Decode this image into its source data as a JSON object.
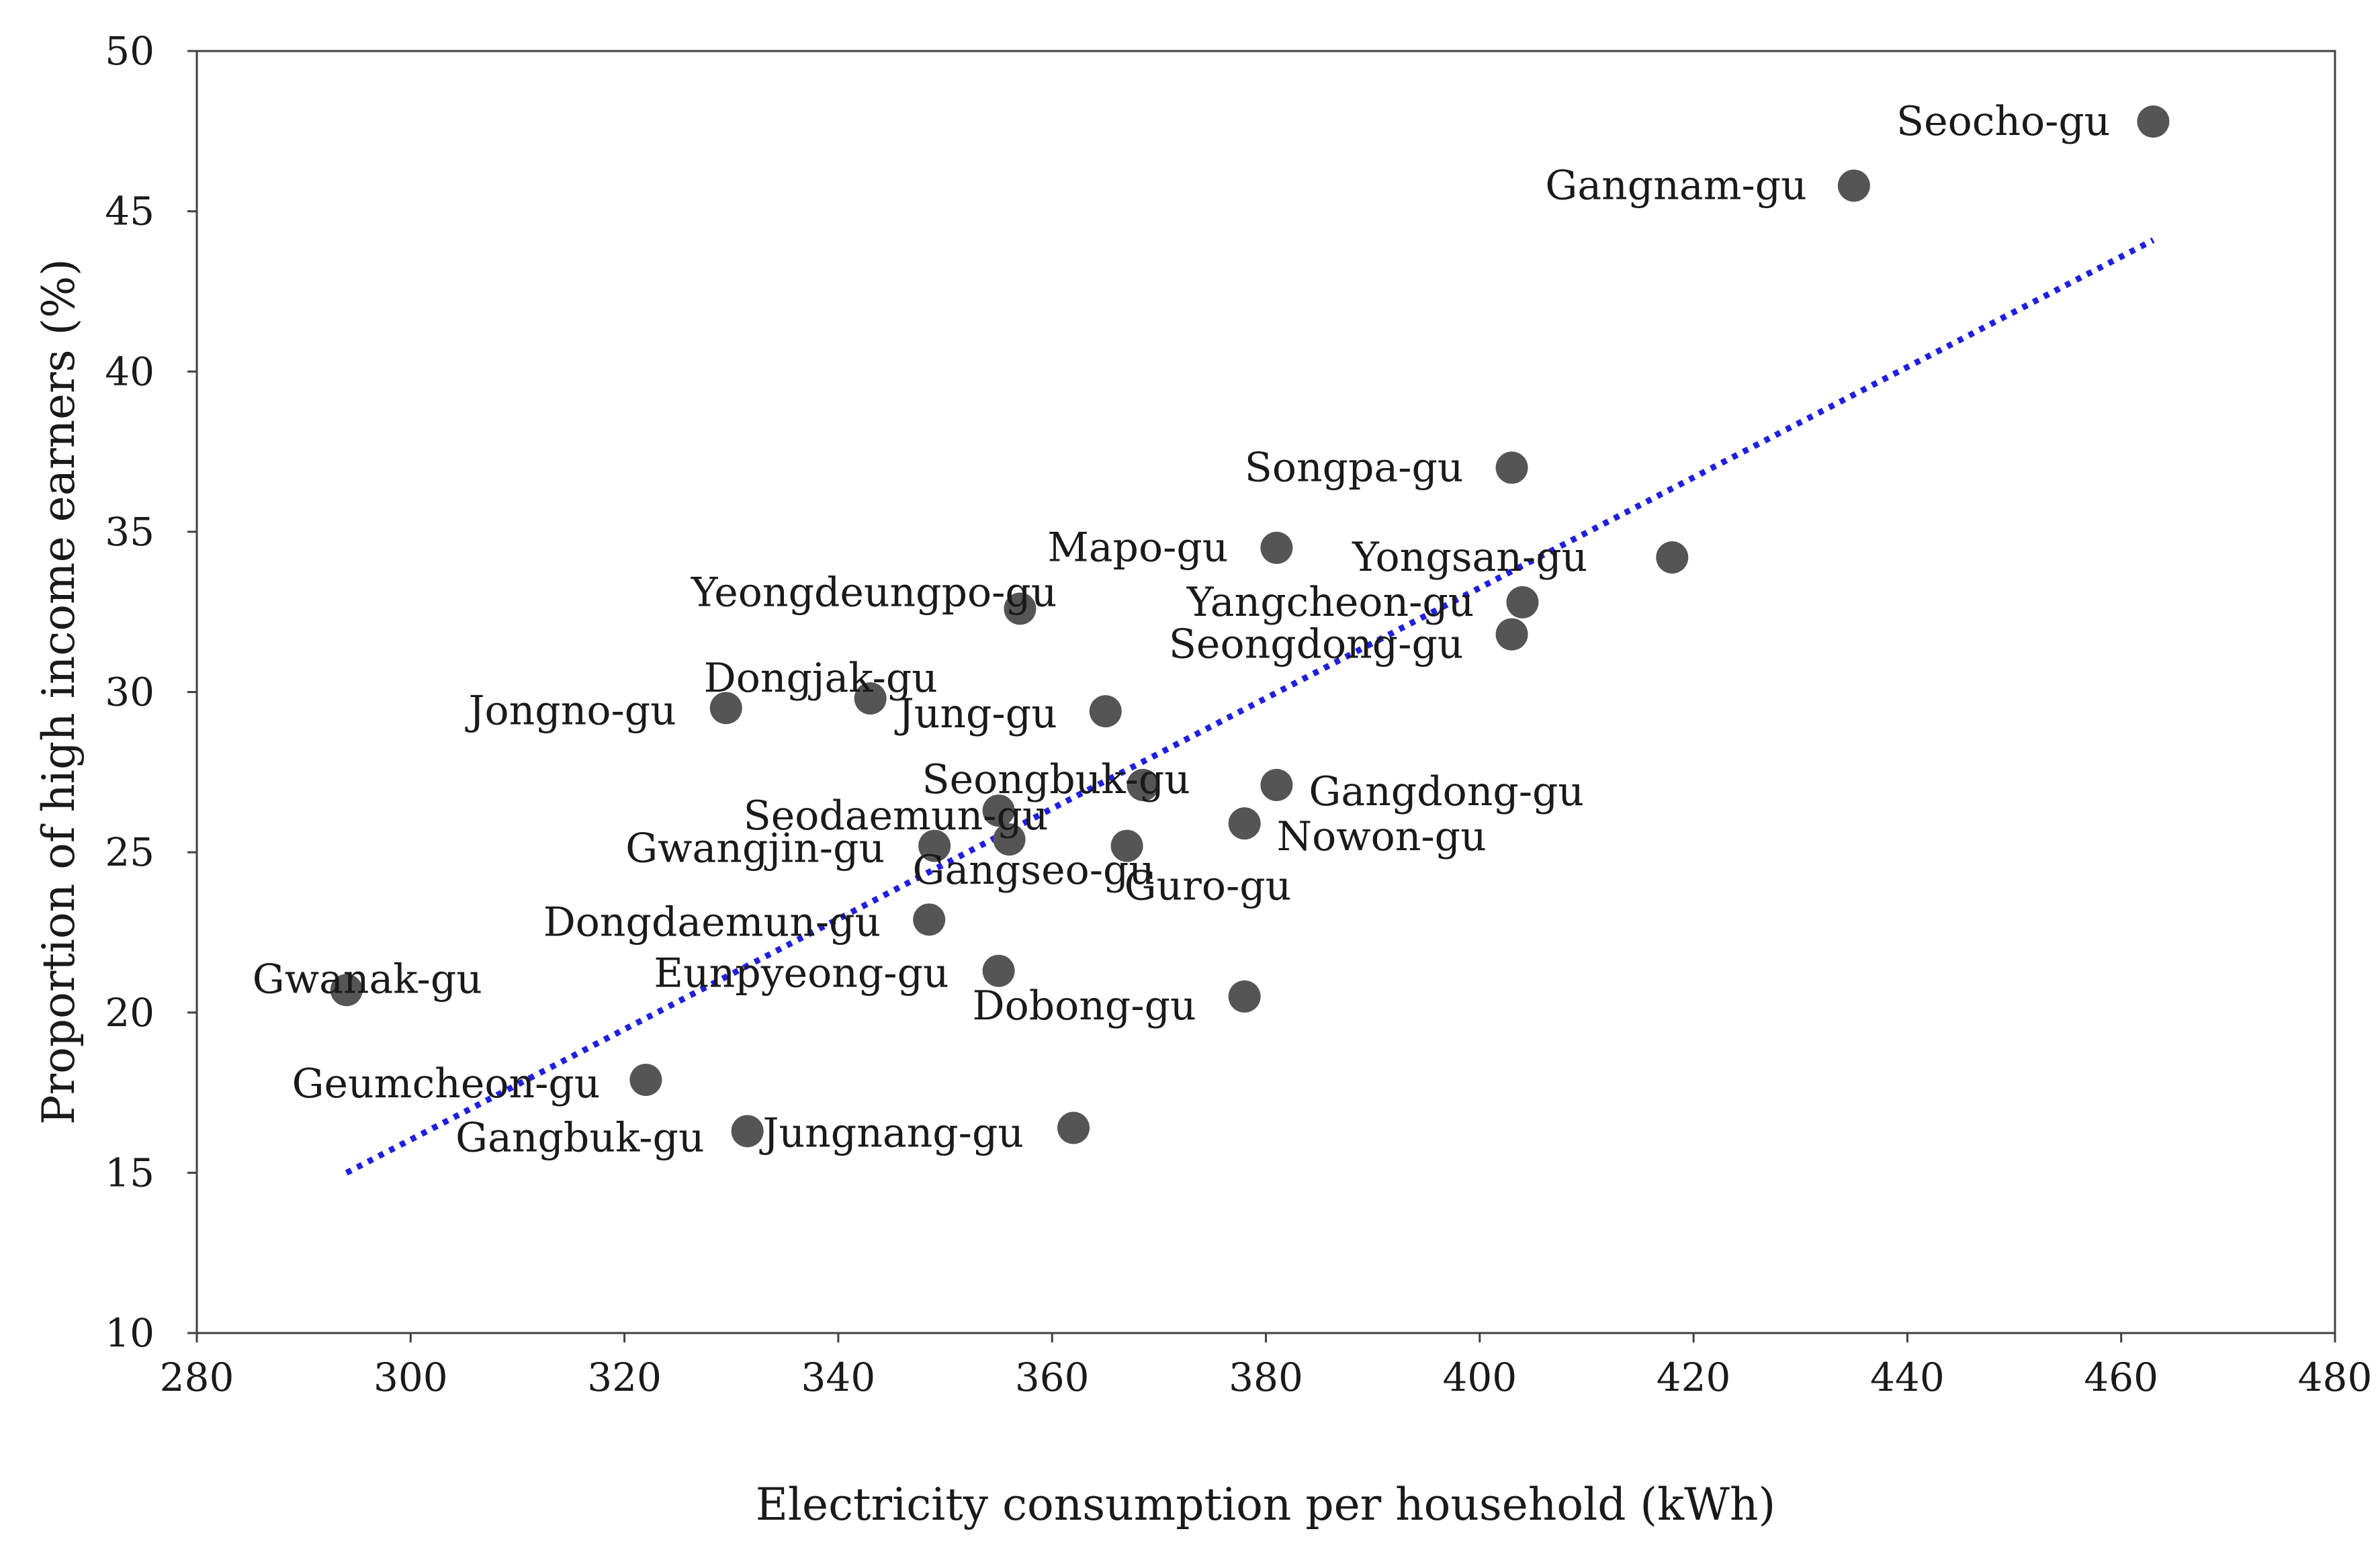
{
  "chart_data": {
    "type": "scatter",
    "title": "",
    "xlabel": "Electricity consumption per household (kWh)",
    "ylabel": "Proportion of high income earners (%)",
    "xlim": [
      280,
      480
    ],
    "ylim": [
      10,
      50
    ],
    "xticks": [
      280,
      300,
      320,
      340,
      360,
      380,
      400,
      420,
      440,
      460,
      480
    ],
    "yticks": [
      10,
      15,
      20,
      25,
      30,
      35,
      40,
      45,
      50
    ],
    "grid": false,
    "legend": "none",
    "colors": {
      "point": "#555555",
      "trend": "#1f1fe0",
      "axis": "#404040"
    },
    "trendline": {
      "style": "dotted",
      "x": [
        294,
        463
      ],
      "y": [
        15,
        44.1
      ]
    },
    "points": [
      {
        "name": "Seocho-gu",
        "x": 463,
        "y": 47.8
      },
      {
        "name": "Gangnam-gu",
        "x": 435,
        "y": 45.8
      },
      {
        "name": "Songpa-gu",
        "x": 403,
        "y": 37.0
      },
      {
        "name": "Mapo-gu",
        "x": 381,
        "y": 34.5
      },
      {
        "name": "Yongsan-gu",
        "x": 418,
        "y": 34.2
      },
      {
        "name": "Yangcheon-gu",
        "x": 404,
        "y": 32.8
      },
      {
        "name": "Seongdong-gu",
        "x": 403,
        "y": 31.8
      },
      {
        "name": "Yeongdeungpo-gu",
        "x": 357,
        "y": 32.6
      },
      {
        "name": "Dongjak-gu",
        "x": 343,
        "y": 29.8
      },
      {
        "name": "Jongno-gu",
        "x": 329.5,
        "y": 29.5
      },
      {
        "name": "Jung-gu",
        "x": 365,
        "y": 29.4
      },
      {
        "name": "Seongbuk-gu",
        "x": 368.5,
        "y": 27.1
      },
      {
        "name": "Gangdong-gu",
        "x": 381,
        "y": 27.1
      },
      {
        "name": "Seodaemun-gu",
        "x": 355,
        "y": 26.3
      },
      {
        "name": "Nowon-gu",
        "x": 378,
        "y": 25.9
      },
      {
        "name": "Gwangjin-gu",
        "x": 349,
        "y": 25.2
      },
      {
        "name": "Gangseo-gu",
        "x": 356,
        "y": 25.4
      },
      {
        "name": "Guro-gu",
        "x": 367,
        "y": 25.2
      },
      {
        "name": "Dongdaemun-gu",
        "x": 348.5,
        "y": 22.9
      },
      {
        "name": "Eunpyeong-gu",
        "x": 355,
        "y": 21.3
      },
      {
        "name": "Gwanak-gu",
        "x": 294,
        "y": 20.7
      },
      {
        "name": "Dobong-gu",
        "x": 378,
        "y": 20.5
      },
      {
        "name": "Geumcheon-gu",
        "x": 322,
        "y": 17.9
      },
      {
        "name": "Gangbuk-gu",
        "x": 331.5,
        "y": 16.3
      },
      {
        "name": "Jungnang-gu",
        "x": 362,
        "y": 16.4
      }
    ]
  }
}
